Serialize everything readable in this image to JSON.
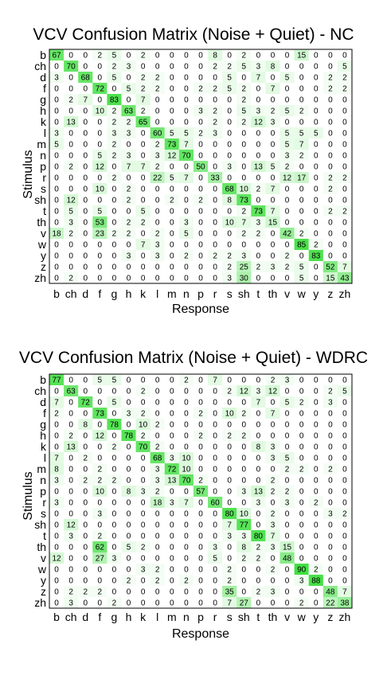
{
  "chart_data": [
    {
      "type": "heatmap",
      "title": "VCV Confusion Matrix (Noise + Quiet) - NC",
      "xlabel": "Response",
      "ylabel": "Stimulus",
      "categories": [
        "b",
        "ch",
        "d",
        "f",
        "g",
        "h",
        "k",
        "l",
        "m",
        "n",
        "p",
        "r",
        "s",
        "sh",
        "t",
        "th",
        "v",
        "w",
        "y",
        "z",
        "zh"
      ],
      "color_low": "#ffffff",
      "color_high": "#33dd33",
      "max_value": 100,
      "values": [
        [
          67,
          0,
          0,
          2,
          5,
          0,
          2,
          0,
          0,
          0,
          0,
          8,
          0,
          2,
          0,
          0,
          0,
          15,
          0,
          0,
          0
        ],
        [
          0,
          70,
          0,
          0,
          2,
          3,
          0,
          0,
          0,
          0,
          0,
          2,
          2,
          5,
          3,
          8,
          0,
          0,
          0,
          0,
          5
        ],
        [
          3,
          0,
          68,
          0,
          5,
          0,
          2,
          2,
          0,
          0,
          0,
          0,
          5,
          0,
          7,
          0,
          5,
          0,
          0,
          2,
          2
        ],
        [
          0,
          0,
          0,
          72,
          0,
          5,
          2,
          2,
          0,
          0,
          2,
          2,
          5,
          2,
          0,
          7,
          0,
          0,
          0,
          2,
          2
        ],
        [
          0,
          2,
          7,
          0,
          83,
          0,
          7,
          0,
          0,
          0,
          0,
          0,
          0,
          2,
          0,
          0,
          0,
          0,
          0,
          0,
          0
        ],
        [
          0,
          0,
          0,
          10,
          2,
          63,
          2,
          0,
          0,
          0,
          3,
          2,
          0,
          5,
          3,
          2,
          5,
          2,
          0,
          0,
          0
        ],
        [
          0,
          13,
          0,
          0,
          2,
          2,
          65,
          0,
          0,
          0,
          0,
          2,
          0,
          2,
          12,
          3,
          0,
          0,
          0,
          0,
          0
        ],
        [
          3,
          0,
          0,
          0,
          3,
          3,
          0,
          60,
          5,
          5,
          2,
          3,
          0,
          0,
          0,
          0,
          5,
          5,
          5,
          0,
          0
        ],
        [
          5,
          0,
          0,
          0,
          2,
          0,
          0,
          2,
          73,
          7,
          0,
          0,
          0,
          0,
          0,
          0,
          5,
          7,
          0,
          0,
          0
        ],
        [
          0,
          0,
          0,
          5,
          2,
          3,
          0,
          3,
          12,
          70,
          0,
          0,
          0,
          0,
          0,
          0,
          3,
          2,
          0,
          0,
          0
        ],
        [
          0,
          2,
          0,
          12,
          0,
          7,
          7,
          2,
          0,
          0,
          50,
          0,
          3,
          0,
          13,
          5,
          2,
          0,
          0,
          0,
          0
        ],
        [
          0,
          0,
          0,
          0,
          2,
          0,
          0,
          22,
          5,
          7,
          0,
          33,
          0,
          0,
          0,
          0,
          12,
          17,
          0,
          2,
          2
        ],
        [
          0,
          0,
          0,
          10,
          0,
          2,
          0,
          0,
          0,
          0,
          0,
          0,
          68,
          10,
          2,
          7,
          0,
          0,
          0,
          2,
          0
        ],
        [
          0,
          12,
          0,
          0,
          0,
          2,
          0,
          0,
          2,
          0,
          2,
          0,
          8,
          73,
          0,
          0,
          0,
          0,
          0,
          0,
          0
        ],
        [
          0,
          5,
          0,
          5,
          0,
          0,
          5,
          0,
          0,
          0,
          0,
          0,
          0,
          2,
          73,
          7,
          0,
          0,
          0,
          2,
          2
        ],
        [
          0,
          3,
          0,
          53,
          0,
          2,
          2,
          0,
          0,
          3,
          0,
          0,
          10,
          7,
          3,
          15,
          0,
          0,
          0,
          0,
          0
        ],
        [
          18,
          2,
          0,
          23,
          2,
          2,
          0,
          2,
          0,
          5,
          0,
          0,
          0,
          2,
          2,
          0,
          42,
          2,
          0,
          0,
          0
        ],
        [
          0,
          0,
          0,
          0,
          0,
          0,
          7,
          3,
          0,
          0,
          0,
          0,
          0,
          0,
          0,
          0,
          0,
          85,
          2,
          0,
          0
        ],
        [
          0,
          0,
          0,
          0,
          0,
          3,
          0,
          3,
          0,
          2,
          0,
          2,
          2,
          3,
          0,
          0,
          2,
          0,
          83,
          0,
          0
        ],
        [
          0,
          0,
          0,
          0,
          0,
          0,
          0,
          0,
          0,
          0,
          0,
          0,
          2,
          25,
          2,
          3,
          2,
          5,
          0,
          52,
          7
        ],
        [
          0,
          2,
          0,
          0,
          0,
          0,
          0,
          0,
          0,
          0,
          0,
          0,
          3,
          30,
          0,
          0,
          0,
          5,
          0,
          15,
          43
        ]
      ]
    },
    {
      "type": "heatmap",
      "title": "VCV Confusion Matrix (Noise + Quiet) - WDRC",
      "xlabel": "Response",
      "ylabel": "Stimulus",
      "categories": [
        "b",
        "ch",
        "d",
        "f",
        "g",
        "h",
        "k",
        "l",
        "m",
        "n",
        "p",
        "r",
        "s",
        "sh",
        "t",
        "th",
        "v",
        "w",
        "y",
        "z",
        "zh"
      ],
      "color_low": "#ffffff",
      "color_high": "#33dd33",
      "max_value": 100,
      "values": [
        [
          77,
          0,
          0,
          5,
          5,
          0,
          0,
          0,
          0,
          2,
          0,
          7,
          0,
          0,
          0,
          2,
          3,
          0,
          0,
          0,
          0
        ],
        [
          0,
          63,
          0,
          0,
          0,
          0,
          2,
          0,
          0,
          0,
          0,
          0,
          2,
          12,
          3,
          12,
          0,
          0,
          0,
          2,
          5
        ],
        [
          7,
          0,
          72,
          0,
          5,
          0,
          0,
          0,
          0,
          0,
          0,
          0,
          0,
          0,
          7,
          0,
          5,
          2,
          0,
          3,
          0
        ],
        [
          2,
          0,
          0,
          73,
          0,
          3,
          2,
          0,
          0,
          0,
          2,
          0,
          10,
          2,
          0,
          7,
          0,
          0,
          0,
          0,
          0
        ],
        [
          0,
          0,
          8,
          0,
          78,
          0,
          10,
          2,
          0,
          0,
          0,
          0,
          0,
          0,
          0,
          0,
          0,
          0,
          0,
          0,
          0
        ],
        [
          0,
          2,
          0,
          12,
          0,
          78,
          2,
          0,
          0,
          0,
          2,
          0,
          2,
          2,
          0,
          0,
          0,
          0,
          0,
          0,
          0
        ],
        [
          0,
          13,
          0,
          0,
          2,
          0,
          70,
          2,
          0,
          0,
          0,
          0,
          0,
          0,
          8,
          3,
          0,
          0,
          0,
          0,
          0
        ],
        [
          7,
          0,
          2,
          0,
          0,
          0,
          0,
          68,
          3,
          10,
          0,
          0,
          0,
          0,
          0,
          3,
          5,
          0,
          0,
          0,
          0
        ],
        [
          8,
          0,
          0,
          2,
          0,
          0,
          0,
          3,
          72,
          10,
          0,
          0,
          0,
          0,
          0,
          0,
          2,
          2,
          0,
          2,
          0
        ],
        [
          3,
          0,
          2,
          2,
          2,
          0,
          0,
          3,
          13,
          70,
          2,
          0,
          0,
          0,
          0,
          2,
          0,
          0,
          0,
          0,
          0
        ],
        [
          0,
          0,
          0,
          10,
          0,
          8,
          3,
          2,
          0,
          0,
          57,
          0,
          0,
          3,
          13,
          2,
          2,
          0,
          0,
          0,
          0
        ],
        [
          3,
          0,
          0,
          0,
          0,
          0,
          0,
          18,
          3,
          7,
          0,
          60,
          0,
          0,
          3,
          0,
          3,
          0,
          2,
          0,
          0
        ],
        [
          0,
          0,
          0,
          3,
          0,
          0,
          0,
          0,
          0,
          0,
          0,
          0,
          80,
          10,
          0,
          2,
          0,
          0,
          0,
          3,
          2
        ],
        [
          0,
          12,
          0,
          0,
          0,
          0,
          0,
          0,
          0,
          0,
          0,
          0,
          7,
          77,
          0,
          3,
          0,
          0,
          0,
          0,
          0
        ],
        [
          0,
          3,
          0,
          2,
          0,
          0,
          0,
          0,
          0,
          0,
          0,
          0,
          3,
          3,
          80,
          7,
          0,
          0,
          0,
          0,
          0
        ],
        [
          0,
          0,
          0,
          62,
          0,
          5,
          2,
          0,
          0,
          0,
          0,
          3,
          0,
          8,
          2,
          3,
          15,
          0,
          0,
          0,
          0
        ],
        [
          12,
          0,
          0,
          27,
          3,
          0,
          0,
          0,
          0,
          0,
          0,
          5,
          0,
          2,
          2,
          0,
          48,
          0,
          0,
          0,
          0
        ],
        [
          0,
          0,
          0,
          0,
          0,
          0,
          3,
          2,
          0,
          0,
          0,
          0,
          2,
          0,
          0,
          2,
          0,
          90,
          2,
          0,
          0
        ],
        [
          0,
          0,
          0,
          0,
          0,
          2,
          0,
          2,
          0,
          2,
          0,
          0,
          2,
          0,
          0,
          0,
          0,
          3,
          88,
          0,
          0
        ],
        [
          0,
          2,
          2,
          2,
          0,
          0,
          0,
          0,
          0,
          0,
          0,
          0,
          35,
          0,
          2,
          3,
          0,
          0,
          0,
          48,
          7
        ],
        [
          0,
          3,
          0,
          0,
          2,
          0,
          0,
          0,
          0,
          0,
          0,
          0,
          7,
          27,
          0,
          0,
          0,
          2,
          0,
          22,
          38
        ]
      ]
    }
  ]
}
